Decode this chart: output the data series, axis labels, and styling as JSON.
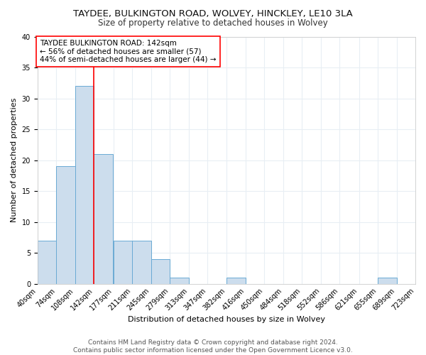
{
  "title": "TAYDEE, BULKINGTON ROAD, WOLVEY, HINCKLEY, LE10 3LA",
  "subtitle": "Size of property relative to detached houses in Wolvey",
  "xlabel": "Distribution of detached houses by size in Wolvey",
  "ylabel": "Number of detached properties",
  "bin_edges": [
    40,
    74,
    108,
    142,
    177,
    211,
    245,
    279,
    313,
    347,
    382,
    416,
    450,
    484,
    518,
    552,
    586,
    621,
    655,
    689,
    723
  ],
  "bin_labels": [
    "40sqm",
    "74sqm",
    "108sqm",
    "142sqm",
    "177sqm",
    "211sqm",
    "245sqm",
    "279sqm",
    "313sqm",
    "347sqm",
    "382sqm",
    "416sqm",
    "450sqm",
    "484sqm",
    "518sqm",
    "552sqm",
    "586sqm",
    "621sqm",
    "655sqm",
    "689sqm",
    "723sqm"
  ],
  "counts": [
    7,
    19,
    32,
    21,
    7,
    7,
    4,
    1,
    0,
    0,
    1,
    0,
    0,
    0,
    0,
    0,
    0,
    0,
    1,
    0
  ],
  "bar_color": "#ccdded",
  "bar_edge_color": "#6aaad4",
  "vline_x": 142,
  "vline_color": "red",
  "annotation_text": "TAYDEE BULKINGTON ROAD: 142sqm\n← 56% of detached houses are smaller (57)\n44% of semi-detached houses are larger (44) →",
  "annotation_box_color": "white",
  "annotation_box_edge_color": "red",
  "ylim": [
    0,
    40
  ],
  "yticks": [
    0,
    5,
    10,
    15,
    20,
    25,
    30,
    35,
    40
  ],
  "footer_text": "Contains HM Land Registry data © Crown copyright and database right 2024.\nContains public sector information licensed under the Open Government Licence v3.0.",
  "background_color": "#ffffff",
  "grid_color": "#e8eef4",
  "title_fontsize": 9.5,
  "subtitle_fontsize": 8.5,
  "axis_label_fontsize": 8,
  "tick_fontsize": 7,
  "annotation_fontsize": 7.5,
  "footer_fontsize": 6.5
}
